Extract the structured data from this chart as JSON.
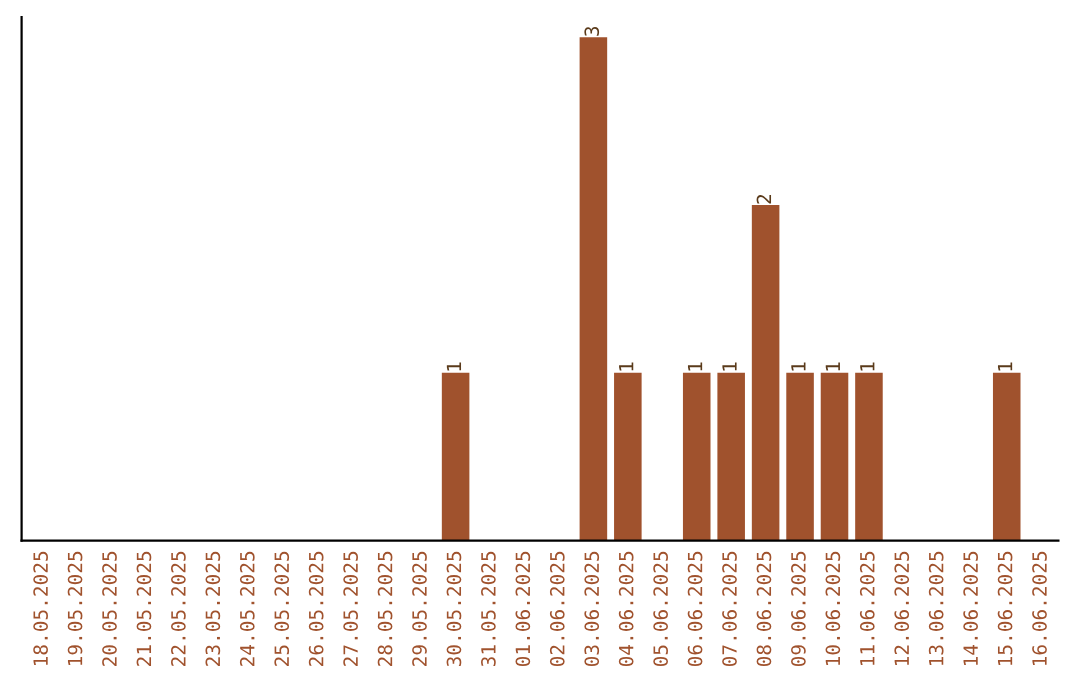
{
  "chart_data": {
    "type": "bar",
    "categories": [
      "18.05.2025",
      "19.05.2025",
      "20.05.2025",
      "21.05.2025",
      "22.05.2025",
      "23.05.2025",
      "24.05.2025",
      "25.05.2025",
      "26.05.2025",
      "27.05.2025",
      "28.05.2025",
      "29.05.2025",
      "30.05.2025",
      "31.05.2025",
      "01.06.2025",
      "02.06.2025",
      "03.06.2025",
      "04.06.2025",
      "05.06.2025",
      "06.06.2025",
      "07.06.2025",
      "08.06.2025",
      "09.06.2025",
      "10.06.2025",
      "11.06.2025",
      "12.06.2025",
      "13.06.2025",
      "14.06.2025",
      "15.06.2025",
      "16.06.2025"
    ],
    "values": [
      null,
      null,
      null,
      null,
      null,
      null,
      null,
      null,
      null,
      null,
      null,
      null,
      1,
      null,
      null,
      null,
      3,
      1,
      null,
      1,
      1,
      2,
      1,
      1,
      1,
      null,
      null,
      null,
      1,
      null
    ],
    "data_labels": true,
    "color": "#a0522d",
    "tick_labels": "x",
    "grid": false,
    "legend": false
  }
}
